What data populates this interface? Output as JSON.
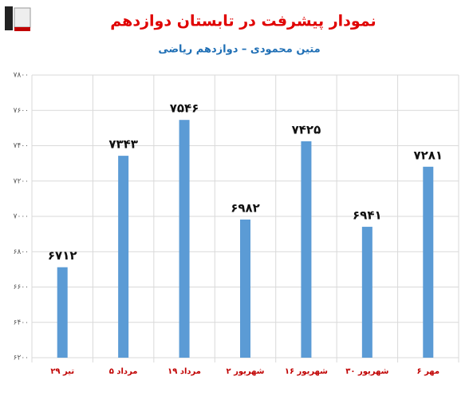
{
  "chart_data": {
    "type": "bar",
    "title": "نمودار پیشرفت در تابستان دوازدهم",
    "subtitle": "متین محمودی – دوازدهم ریاضی",
    "categories": [
      "۲۹ تیر",
      "۵ مرداد",
      "۱۹ مرداد",
      "۲ شهریور",
      "۱۶ شهریور",
      "۳۰ شهریور",
      "۶ مهر"
    ],
    "values": [
      6712,
      7343,
      7546,
      6982,
      7425,
      6941,
      7281
    ],
    "value_labels": [
      "۶۷۱۲",
      "۷۳۴۳",
      "۷۵۴۶",
      "۶۹۸۲",
      "۷۴۲۵",
      "۶۹۴۱",
      "۷۲۸۱"
    ],
    "color": "#5b9bd5",
    "ylim": [
      6200,
      7800
    ],
    "yticks": [
      {
        "value": 6200,
        "label": "۶۲۰۰"
      },
      {
        "value": 6400,
        "label": "۶۴۰۰"
      },
      {
        "value": 6600,
        "label": "۶۶۰۰"
      },
      {
        "value": 6800,
        "label": "۶۸۰۰"
      },
      {
        "value": 7000,
        "label": "۷۰۰۰"
      },
      {
        "value": 7200,
        "label": "۷۲۰۰"
      },
      {
        "value": 7400,
        "label": "۷۴۰۰"
      },
      {
        "value": 7600,
        "label": "۷۶۰۰"
      },
      {
        "value": 7800,
        "label": "۷۸۰۰"
      }
    ],
    "grid": true
  }
}
